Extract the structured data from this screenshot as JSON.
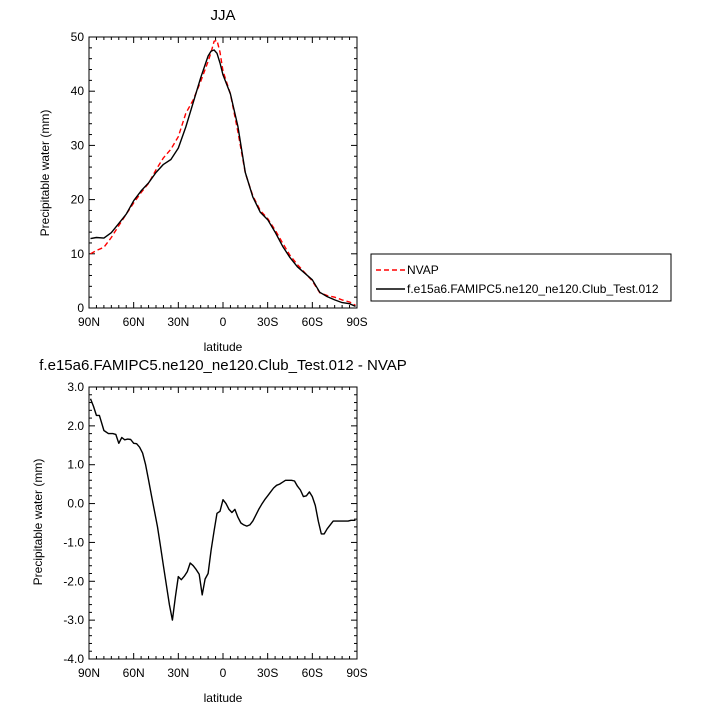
{
  "chart_data": [
    {
      "type": "line",
      "title": "JJA",
      "xlabel": "latitude",
      "ylabel": "Precipitable water (mm)",
      "xlim": [
        -90,
        90
      ],
      "ylim": [
        0,
        50
      ],
      "xticks": [
        -90,
        -60,
        -30,
        0,
        30,
        60,
        90
      ],
      "xtick_labels": [
        "90N",
        "60N",
        "30N",
        "0",
        "30S",
        "60S",
        "90S"
      ],
      "yticks": [
        0,
        10,
        20,
        30,
        40,
        50
      ],
      "ytick_labels": [
        "0",
        "10",
        "20",
        "30",
        "40",
        "50"
      ],
      "legend_position": "outside-right",
      "series": [
        {
          "name": "NVAP",
          "color": "#ff0000",
          "dash": "dashed",
          "x": [
            -89,
            -85,
            -80,
            -75,
            -70,
            -65,
            -60,
            -55,
            -50,
            -45,
            -40,
            -35,
            -30,
            -25,
            -20,
            -15,
            -10,
            -8,
            -6,
            -4,
            -2,
            0,
            5,
            10,
            15,
            20,
            25,
            30,
            35,
            40,
            45,
            50,
            55,
            60,
            65,
            70,
            75,
            80,
            85,
            89
          ],
          "y": [
            10.0,
            10.6,
            11.2,
            13.0,
            15.2,
            17.3,
            19.4,
            21.3,
            23.0,
            25.5,
            27.7,
            29.3,
            31.6,
            35.9,
            38.4,
            41.8,
            45.5,
            47.2,
            49.2,
            49.4,
            47.2,
            43.7,
            39.5,
            32.5,
            24.9,
            20.7,
            18.0,
            16.5,
            14.4,
            12.0,
            9.7,
            8.0,
            6.5,
            5.0,
            2.8,
            2.3,
            2.0,
            1.5,
            1.1,
            0.5
          ]
        },
        {
          "name": "f.e15a6.FAMIPC5.ne120_ne120.Club_Test.012",
          "color": "#000000",
          "dash": "solid",
          "x": [
            -89,
            -85,
            -80,
            -75,
            -70,
            -65,
            -60,
            -55,
            -50,
            -45,
            -40,
            -35,
            -30,
            -25,
            -20,
            -15,
            -10,
            -8,
            -6,
            -4,
            -2,
            0,
            5,
            10,
            15,
            20,
            25,
            30,
            35,
            40,
            45,
            50,
            55,
            60,
            65,
            70,
            75,
            80,
            85,
            89
          ],
          "y": [
            12.8,
            13.0,
            12.9,
            13.9,
            15.6,
            17.3,
            19.8,
            21.6,
            23.1,
            25.0,
            26.5,
            27.4,
            29.5,
            33.4,
            37.9,
            42.5,
            46.5,
            47.4,
            47.6,
            47.0,
            45.2,
            43.0,
            39.5,
            33.5,
            25.0,
            20.5,
            17.7,
            16.3,
            14.0,
            11.4,
            9.3,
            7.6,
            6.4,
            5.2,
            2.9,
            2.1,
            1.5,
            1.0,
            0.8,
            0.3
          ]
        }
      ]
    },
    {
      "type": "line",
      "title": "f.e15a6.FAMIPC5.ne120_ne120.Club_Test.012 - NVAP",
      "xlabel": "latitude",
      "ylabel": "Precipitable water (mm)",
      "xlim": [
        -90,
        90
      ],
      "ylim": [
        -4,
        3
      ],
      "xticks": [
        -90,
        -60,
        -30,
        0,
        30,
        60,
        90
      ],
      "xtick_labels": [
        "90N",
        "60N",
        "30N",
        "0",
        "30S",
        "60S",
        "90S"
      ],
      "yticks": [
        3,
        2,
        1,
        0,
        -1,
        -2,
        -3,
        -4
      ],
      "ytick_labels": [
        "3.0",
        "2.0",
        "1.0",
        "0.0",
        "-1.0",
        "-2.0",
        "-3.0",
        "-4.0"
      ],
      "series": [
        {
          "color": "#000000",
          "dash": "solid",
          "x": [
            -89,
            -87,
            -85,
            -83,
            -80,
            -77,
            -74,
            -72,
            -70,
            -68,
            -66,
            -64,
            -62,
            -60,
            -58,
            -56,
            -54,
            -52,
            -50,
            -48,
            -46,
            -44,
            -42,
            -40,
            -38,
            -36,
            -34,
            -32,
            -30,
            -28,
            -26,
            -24,
            -22,
            -20,
            -18,
            -16,
            -14,
            -12,
            -10,
            -8,
            -6,
            -4,
            -2,
            0,
            2,
            4,
            6,
            8,
            10,
            12,
            14,
            16,
            18,
            20,
            22,
            24,
            26,
            28,
            30,
            32,
            34,
            36,
            38,
            40,
            42,
            44,
            46,
            48,
            50,
            52,
            54,
            56,
            58,
            60,
            62,
            64,
            66,
            68,
            70,
            72,
            74,
            76,
            78,
            80,
            82,
            84,
            86,
            89
          ],
          "y": [
            2.7,
            2.5,
            2.27,
            2.27,
            1.88,
            1.8,
            1.8,
            1.78,
            1.55,
            1.7,
            1.64,
            1.66,
            1.65,
            1.55,
            1.54,
            1.45,
            1.3,
            1.0,
            0.6,
            0.2,
            -0.2,
            -0.6,
            -1.1,
            -1.6,
            -2.1,
            -2.6,
            -3.0,
            -2.4,
            -1.88,
            -1.96,
            -1.87,
            -1.75,
            -1.53,
            -1.6,
            -1.7,
            -1.82,
            -2.35,
            -1.94,
            -1.8,
            -1.2,
            -0.7,
            -0.25,
            -0.2,
            0.1,
            0.0,
            -0.15,
            -0.23,
            -0.15,
            -0.35,
            -0.5,
            -0.55,
            -0.58,
            -0.55,
            -0.45,
            -0.3,
            -0.15,
            -0.02,
            0.1,
            0.2,
            0.3,
            0.4,
            0.47,
            0.5,
            0.55,
            0.6,
            0.6,
            0.6,
            0.58,
            0.45,
            0.35,
            0.18,
            0.2,
            0.3,
            0.18,
            -0.05,
            -0.45,
            -0.78,
            -0.78,
            -0.65,
            -0.55,
            -0.45,
            -0.45,
            -0.45,
            -0.45,
            -0.45,
            -0.45,
            -0.43,
            -0.43
          ]
        }
      ]
    }
  ]
}
